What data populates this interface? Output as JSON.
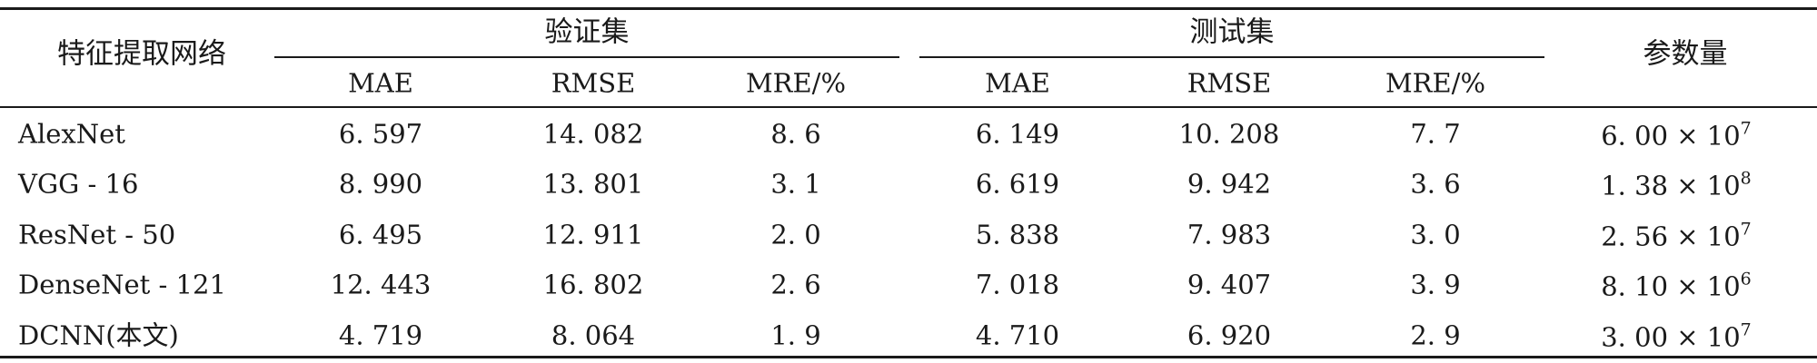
{
  "table": {
    "header": {
      "feature_net": "特征提取网络",
      "group_val": "验证集",
      "group_test": "测试集",
      "params": "参数量",
      "sub": [
        "MAE",
        "RMSE",
        "MRE/%",
        "MAE",
        "RMSE",
        "MRE/%"
      ]
    },
    "rows": [
      {
        "name": "AlexNet",
        "vals": [
          "6. 597",
          "14. 082",
          "8. 6",
          "6. 149",
          "10. 208",
          "7. 7"
        ],
        "param_mant": "6. 00 × 10",
        "param_exp": "7"
      },
      {
        "name": "VGG - 16",
        "vals": [
          "8. 990",
          "13. 801",
          "3. 1",
          "6. 619",
          "9. 942",
          "3. 6"
        ],
        "param_mant": "1. 38 × 10",
        "param_exp": "8"
      },
      {
        "name": "ResNet - 50",
        "vals": [
          "6. 495",
          "12. 911",
          "2. 0",
          "5. 838",
          "7. 983",
          "3. 0"
        ],
        "param_mant": "2. 56 × 10",
        "param_exp": "7"
      },
      {
        "name": "DenseNet - 121",
        "vals": [
          "12. 443",
          "16. 802",
          "2. 6",
          "7. 018",
          "9. 407",
          "3. 9"
        ],
        "param_mant": "8. 10 × 10",
        "param_exp": "6"
      },
      {
        "name": "DCNN(本文)",
        "vals": [
          "4. 719",
          "8. 064",
          "1. 9",
          "4. 710",
          "6. 920",
          "2. 9"
        ],
        "param_mant": "3. 00 × 10",
        "param_exp": "7"
      }
    ]
  }
}
